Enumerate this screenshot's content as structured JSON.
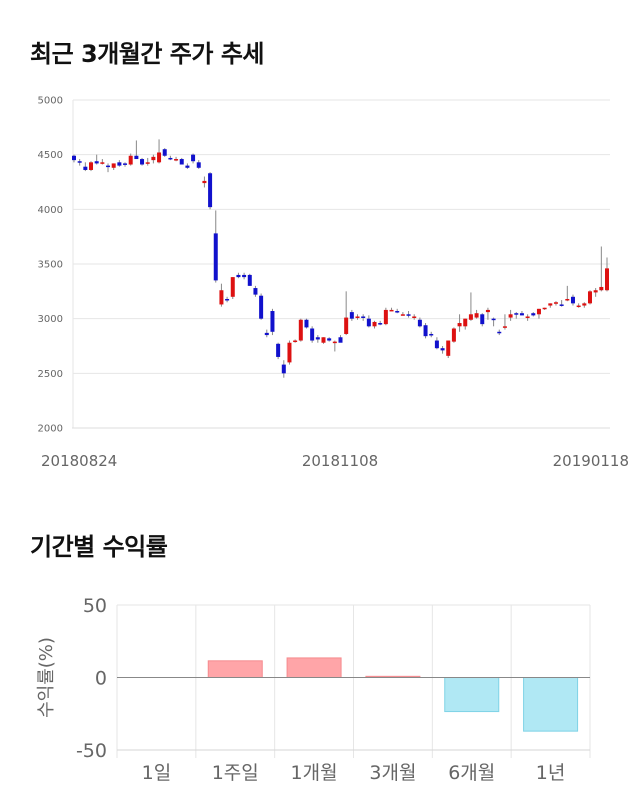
{
  "sections": {
    "price_title": "최근 3개월간 주가 추세",
    "returns_title": "기간별 수익률"
  },
  "colors": {
    "up": "#dd1111",
    "down": "#1111cc",
    "positive_bar": "#ffa5a8",
    "negative_bar": "#b0e8f4"
  },
  "chart_data": [
    {
      "type": "candlestick",
      "title": "최근 3개월간 주가 추세",
      "ylim": [
        2000,
        5000
      ],
      "yticks": [
        5000,
        4500,
        4000,
        3500,
        3000,
        2500,
        2000
      ],
      "x_labels": [
        "20180824",
        "20181108",
        "20190118"
      ],
      "grid": true,
      "candles": [
        [
          4490,
          4500,
          4430,
          4450
        ],
        [
          4440,
          4460,
          4400,
          4430
        ],
        [
          4390,
          4430,
          4350,
          4360
        ],
        [
          4360,
          4440,
          4350,
          4430
        ],
        [
          4440,
          4500,
          4410,
          4420
        ],
        [
          4430,
          4460,
          4410,
          4430
        ],
        [
          4400,
          4420,
          4340,
          4390
        ],
        [
          4380,
          4420,
          4360,
          4420
        ],
        [
          4430,
          4450,
          4390,
          4400
        ],
        [
          4420,
          4430,
          4390,
          4410
        ],
        [
          4410,
          4510,
          4400,
          4490
        ],
        [
          4490,
          4630,
          4470,
          4460
        ],
        [
          4460,
          4470,
          4400,
          4410
        ],
        [
          4420,
          4470,
          4400,
          4430
        ],
        [
          4450,
          4500,
          4420,
          4480
        ],
        [
          4430,
          4640,
          4420,
          4520
        ],
        [
          4550,
          4560,
          4480,
          4490
        ],
        [
          4470,
          4490,
          4450,
          4460
        ],
        [
          4460,
          4480,
          4440,
          4460
        ],
        [
          4460,
          4470,
          4410,
          4410
        ],
        [
          4400,
          4420,
          4370,
          4380
        ],
        [
          4500,
          4510,
          4420,
          4440
        ],
        [
          4430,
          4450,
          4370,
          4380
        ],
        [
          4240,
          4300,
          4200,
          4260
        ],
        [
          4330,
          4340,
          4000,
          4020
        ],
        [
          3780,
          3990,
          3330,
          3350
        ],
        [
          3130,
          3320,
          3110,
          3260
        ],
        [
          3180,
          3200,
          3150,
          3170
        ],
        [
          3200,
          3380,
          3180,
          3380
        ],
        [
          3400,
          3420,
          3370,
          3380
        ],
        [
          3400,
          3420,
          3360,
          3380
        ],
        [
          3400,
          3410,
          3300,
          3300
        ],
        [
          3280,
          3300,
          3200,
          3220
        ],
        [
          3210,
          3230,
          2990,
          3000
        ],
        [
          2870,
          2900,
          2830,
          2850
        ],
        [
          3070,
          3090,
          2850,
          2880
        ],
        [
          2770,
          2780,
          2630,
          2650
        ],
        [
          2580,
          2620,
          2460,
          2500
        ],
        [
          2600,
          2800,
          2580,
          2780
        ],
        [
          2790,
          2810,
          2780,
          2800
        ],
        [
          2800,
          3000,
          2790,
          2990
        ],
        [
          2990,
          3000,
          2910,
          2920
        ],
        [
          2910,
          2930,
          2780,
          2800
        ],
        [
          2830,
          2850,
          2780,
          2810
        ],
        [
          2780,
          2830,
          2770,
          2830
        ],
        [
          2820,
          2830,
          2790,
          2800
        ],
        [
          2790,
          2800,
          2700,
          2790
        ],
        [
          2830,
          2850,
          2790,
          2780
        ],
        [
          2860,
          3250,
          2850,
          3010
        ],
        [
          3060,
          3080,
          2980,
          3000
        ],
        [
          3010,
          3040,
          2990,
          3020
        ],
        [
          3020,
          3040,
          2980,
          3010
        ],
        [
          3000,
          3030,
          2920,
          2930
        ],
        [
          2930,
          2980,
          2910,
          2970
        ],
        [
          2960,
          2980,
          2940,
          2950
        ],
        [
          2950,
          3100,
          2940,
          3080
        ],
        [
          3080,
          3100,
          3070,
          3080
        ],
        [
          3070,
          3090,
          3050,
          3060
        ],
        [
          3040,
          3060,
          3030,
          3040
        ],
        [
          3040,
          3070,
          3010,
          3030
        ],
        [
          3010,
          3040,
          2990,
          3020
        ],
        [
          2990,
          3010,
          2920,
          2930
        ],
        [
          2940,
          2960,
          2820,
          2840
        ],
        [
          2860,
          2880,
          2830,
          2850
        ],
        [
          2800,
          2830,
          2720,
          2730
        ],
        [
          2730,
          2750,
          2680,
          2710
        ],
        [
          2660,
          2800,
          2640,
          2800
        ],
        [
          2790,
          2920,
          2780,
          2910
        ],
        [
          2930,
          3040,
          2880,
          2960
        ],
        [
          2930,
          3000,
          2900,
          3000
        ],
        [
          2990,
          3240,
          2980,
          3040
        ],
        [
          3010,
          3080,
          3000,
          3050
        ],
        [
          3040,
          3050,
          2930,
          2950
        ],
        [
          3060,
          3100,
          2990,
          3080
        ],
        [
          3000,
          3010,
          2930,
          2990
        ],
        [
          2880,
          2900,
          2850,
          2870
        ],
        [
          2920,
          3040,
          2900,
          2930
        ],
        [
          3010,
          3080,
          2980,
          3040
        ],
        [
          3050,
          3060,
          3000,
          3040
        ],
        [
          3050,
          3070,
          3030,
          3030
        ],
        [
          3010,
          3040,
          2980,
          3020
        ],
        [
          3050,
          3060,
          3020,
          3030
        ],
        [
          3040,
          3090,
          3000,
          3090
        ],
        [
          3090,
          3100,
          3080,
          3100
        ],
        [
          3120,
          3140,
          3100,
          3140
        ],
        [
          3140,
          3160,
          3120,
          3150
        ],
        [
          3130,
          3170,
          3110,
          3120
        ],
        [
          3180,
          3300,
          3160,
          3180
        ],
        [
          3200,
          3220,
          3120,
          3140
        ],
        [
          3110,
          3140,
          3100,
          3120
        ],
        [
          3120,
          3150,
          3100,
          3140
        ],
        [
          3140,
          3260,
          3130,
          3250
        ],
        [
          3240,
          3280,
          3200,
          3260
        ],
        [
          3260,
          3660,
          3250,
          3290
        ],
        [
          3260,
          3560,
          3250,
          3460
        ]
      ]
    },
    {
      "type": "bar",
      "title": "기간별 수익률",
      "ylabel": "수익률(%)",
      "ylim": [
        -50,
        50
      ],
      "yticks": [
        50,
        0,
        -50
      ],
      "categories": [
        "1일",
        "1주일",
        "1개월",
        "3개월",
        "6개월",
        "1년"
      ],
      "values": [
        0,
        11.5,
        13.5,
        0.8,
        -23.5,
        -37.0
      ]
    }
  ]
}
